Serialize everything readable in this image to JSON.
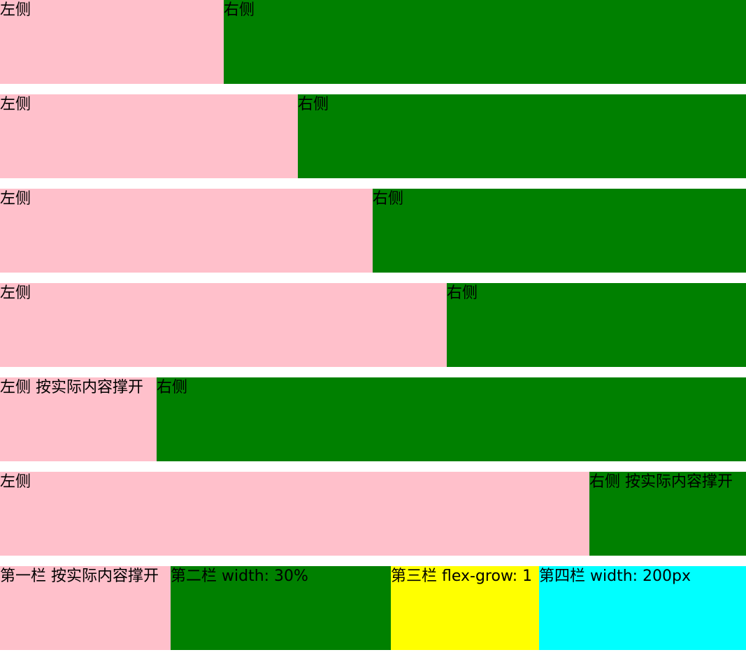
{
  "rows": [
    {
      "left": "左侧",
      "right": "右侧"
    },
    {
      "left": "左侧",
      "right": "右侧"
    },
    {
      "left": "左侧",
      "right": "右侧"
    },
    {
      "left": "左侧",
      "right": "右侧"
    },
    {
      "left": "左侧 按实际内容撑开",
      "right": "右侧"
    },
    {
      "left": "左侧",
      "right": "右侧 按实际内容撑开"
    }
  ],
  "columns_row": {
    "col1": "第一栏 按实际内容撑开",
    "col2": "第二栏 width: 30%",
    "col3": "第三栏 flex-grow: 1",
    "col4": "第四栏 width: 200px"
  },
  "colors": {
    "pink": "#ffc0cb",
    "green": "#008000",
    "yellow": "#ffff00",
    "cyan": "#00ffff"
  }
}
